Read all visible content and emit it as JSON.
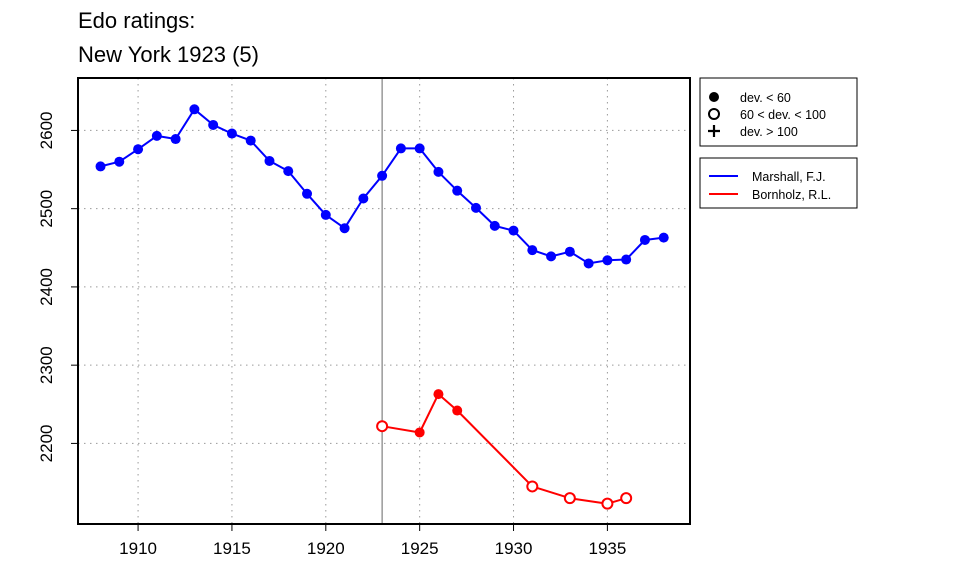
{
  "chart_data": {
    "type": "line",
    "title_lines": [
      "Edo ratings:",
      "New York 1923 (5)"
    ],
    "xlabel": "",
    "ylabel": "",
    "xlim": [
      1906.8,
      1939.4
    ],
    "ylim": [
      2097,
      2667
    ],
    "x_ticks": [
      1910,
      1915,
      1920,
      1925,
      1930,
      1935
    ],
    "y_ticks": [
      2200,
      2300,
      2400,
      2500,
      2600
    ],
    "grid": true,
    "reference_line_x": 1923,
    "symbol_legend": [
      {
        "symbol": "filled-circle",
        "label": "dev. < 60"
      },
      {
        "symbol": "open-circle",
        "label": "60 < dev. < 100"
      },
      {
        "symbol": "plus",
        "label": "dev. > 100"
      }
    ],
    "series": [
      {
        "name": "Marshall, F.J.",
        "color": "#0000ff",
        "points": [
          {
            "x": 1908,
            "y": 2554,
            "dev": "filled"
          },
          {
            "x": 1909,
            "y": 2560,
            "dev": "filled"
          },
          {
            "x": 1910,
            "y": 2576,
            "dev": "filled"
          },
          {
            "x": 1911,
            "y": 2593,
            "dev": "filled"
          },
          {
            "x": 1912,
            "y": 2589,
            "dev": "filled"
          },
          {
            "x": 1913,
            "y": 2627,
            "dev": "filled"
          },
          {
            "x": 1914,
            "y": 2607,
            "dev": "filled"
          },
          {
            "x": 1915,
            "y": 2596,
            "dev": "filled"
          },
          {
            "x": 1916,
            "y": 2587,
            "dev": "filled"
          },
          {
            "x": 1917,
            "y": 2561,
            "dev": "filled"
          },
          {
            "x": 1918,
            "y": 2548,
            "dev": "filled"
          },
          {
            "x": 1919,
            "y": 2519,
            "dev": "filled"
          },
          {
            "x": 1920,
            "y": 2492,
            "dev": "filled"
          },
          {
            "x": 1921,
            "y": 2475,
            "dev": "filled"
          },
          {
            "x": 1922,
            "y": 2513,
            "dev": "filled"
          },
          {
            "x": 1923,
            "y": 2542,
            "dev": "filled"
          },
          {
            "x": 1924,
            "y": 2577,
            "dev": "filled"
          },
          {
            "x": 1925,
            "y": 2577,
            "dev": "filled"
          },
          {
            "x": 1926,
            "y": 2547,
            "dev": "filled"
          },
          {
            "x": 1927,
            "y": 2523,
            "dev": "filled"
          },
          {
            "x": 1928,
            "y": 2501,
            "dev": "filled"
          },
          {
            "x": 1929,
            "y": 2478,
            "dev": "filled"
          },
          {
            "x": 1930,
            "y": 2472,
            "dev": "filled"
          },
          {
            "x": 1931,
            "y": 2447,
            "dev": "filled"
          },
          {
            "x": 1932,
            "y": 2439,
            "dev": "filled"
          },
          {
            "x": 1933,
            "y": 2445,
            "dev": "filled"
          },
          {
            "x": 1934,
            "y": 2430,
            "dev": "filled"
          },
          {
            "x": 1935,
            "y": 2434,
            "dev": "filled"
          },
          {
            "x": 1936,
            "y": 2435,
            "dev": "filled"
          },
          {
            "x": 1937,
            "y": 2460,
            "dev": "filled"
          },
          {
            "x": 1938,
            "y": 2463,
            "dev": "filled"
          }
        ]
      },
      {
        "name": "Bornholz, R.L.",
        "color": "#ff0000",
        "points": [
          {
            "x": 1923,
            "y": 2222,
            "dev": "open"
          },
          {
            "x": 1925,
            "y": 2214,
            "dev": "filled"
          },
          {
            "x": 1926,
            "y": 2263,
            "dev": "filled"
          },
          {
            "x": 1927,
            "y": 2242,
            "dev": "filled"
          },
          {
            "x": 1931,
            "y": 2145,
            "dev": "open"
          },
          {
            "x": 1933,
            "y": 2130,
            "dev": "open"
          },
          {
            "x": 1935,
            "y": 2123,
            "dev": "open"
          },
          {
            "x": 1936,
            "y": 2130,
            "dev": "open"
          }
        ]
      }
    ]
  }
}
